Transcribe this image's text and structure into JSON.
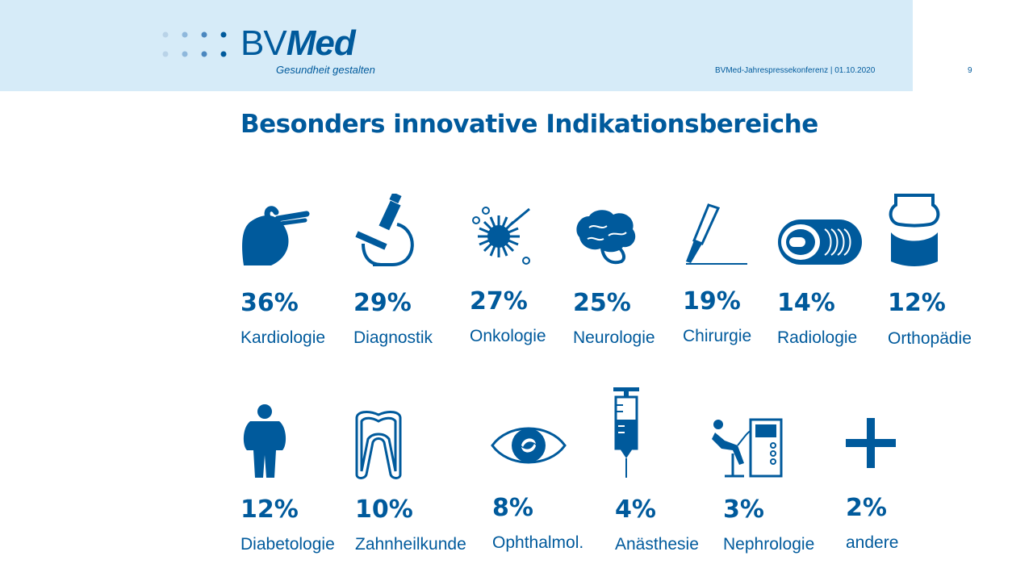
{
  "header": {
    "logo_bv": "BV",
    "logo_med": "Med",
    "tagline": "Gesundheit gestalten",
    "conference": "BVMed-Jahrespressekonferenz | 01.10.2020",
    "page_number": "9",
    "background_color": "#d6ebf8"
  },
  "title": "Besonders innovative Indikationsbereiche",
  "accent_color": "#005a9c",
  "items": [
    {
      "icon": "heart-icon",
      "percent": "36%",
      "label": "Kardiologie"
    },
    {
      "icon": "microscope-icon",
      "percent": "29%",
      "label": "Diagnostik"
    },
    {
      "icon": "cancer-cell-icon",
      "percent": "27%",
      "label": "Onkologie"
    },
    {
      "icon": "brain-icon",
      "percent": "25%",
      "label": "Neurologie"
    },
    {
      "icon": "scalpel-icon",
      "percent": "19%",
      "label": "Chirurgie"
    },
    {
      "icon": "ct-scanner-icon",
      "percent": "14%",
      "label": "Radiologie"
    },
    {
      "icon": "joint-icon",
      "percent": "12%",
      "label": "Orthopädie"
    },
    {
      "icon": "person-icon",
      "percent": "12%",
      "label": "Diabetologie"
    },
    {
      "icon": "tooth-icon",
      "percent": "10%",
      "label": "Zahnheilkunde"
    },
    {
      "icon": "eye-icon",
      "percent": "8%",
      "label": "Ophthalmol."
    },
    {
      "icon": "syringe-icon",
      "percent": "4%",
      "label": "Anästhesie"
    },
    {
      "icon": "dialysis-icon",
      "percent": "3%",
      "label": "Nephrologie"
    },
    {
      "icon": "plus-icon",
      "percent": "2%",
      "label": "andere"
    }
  ]
}
